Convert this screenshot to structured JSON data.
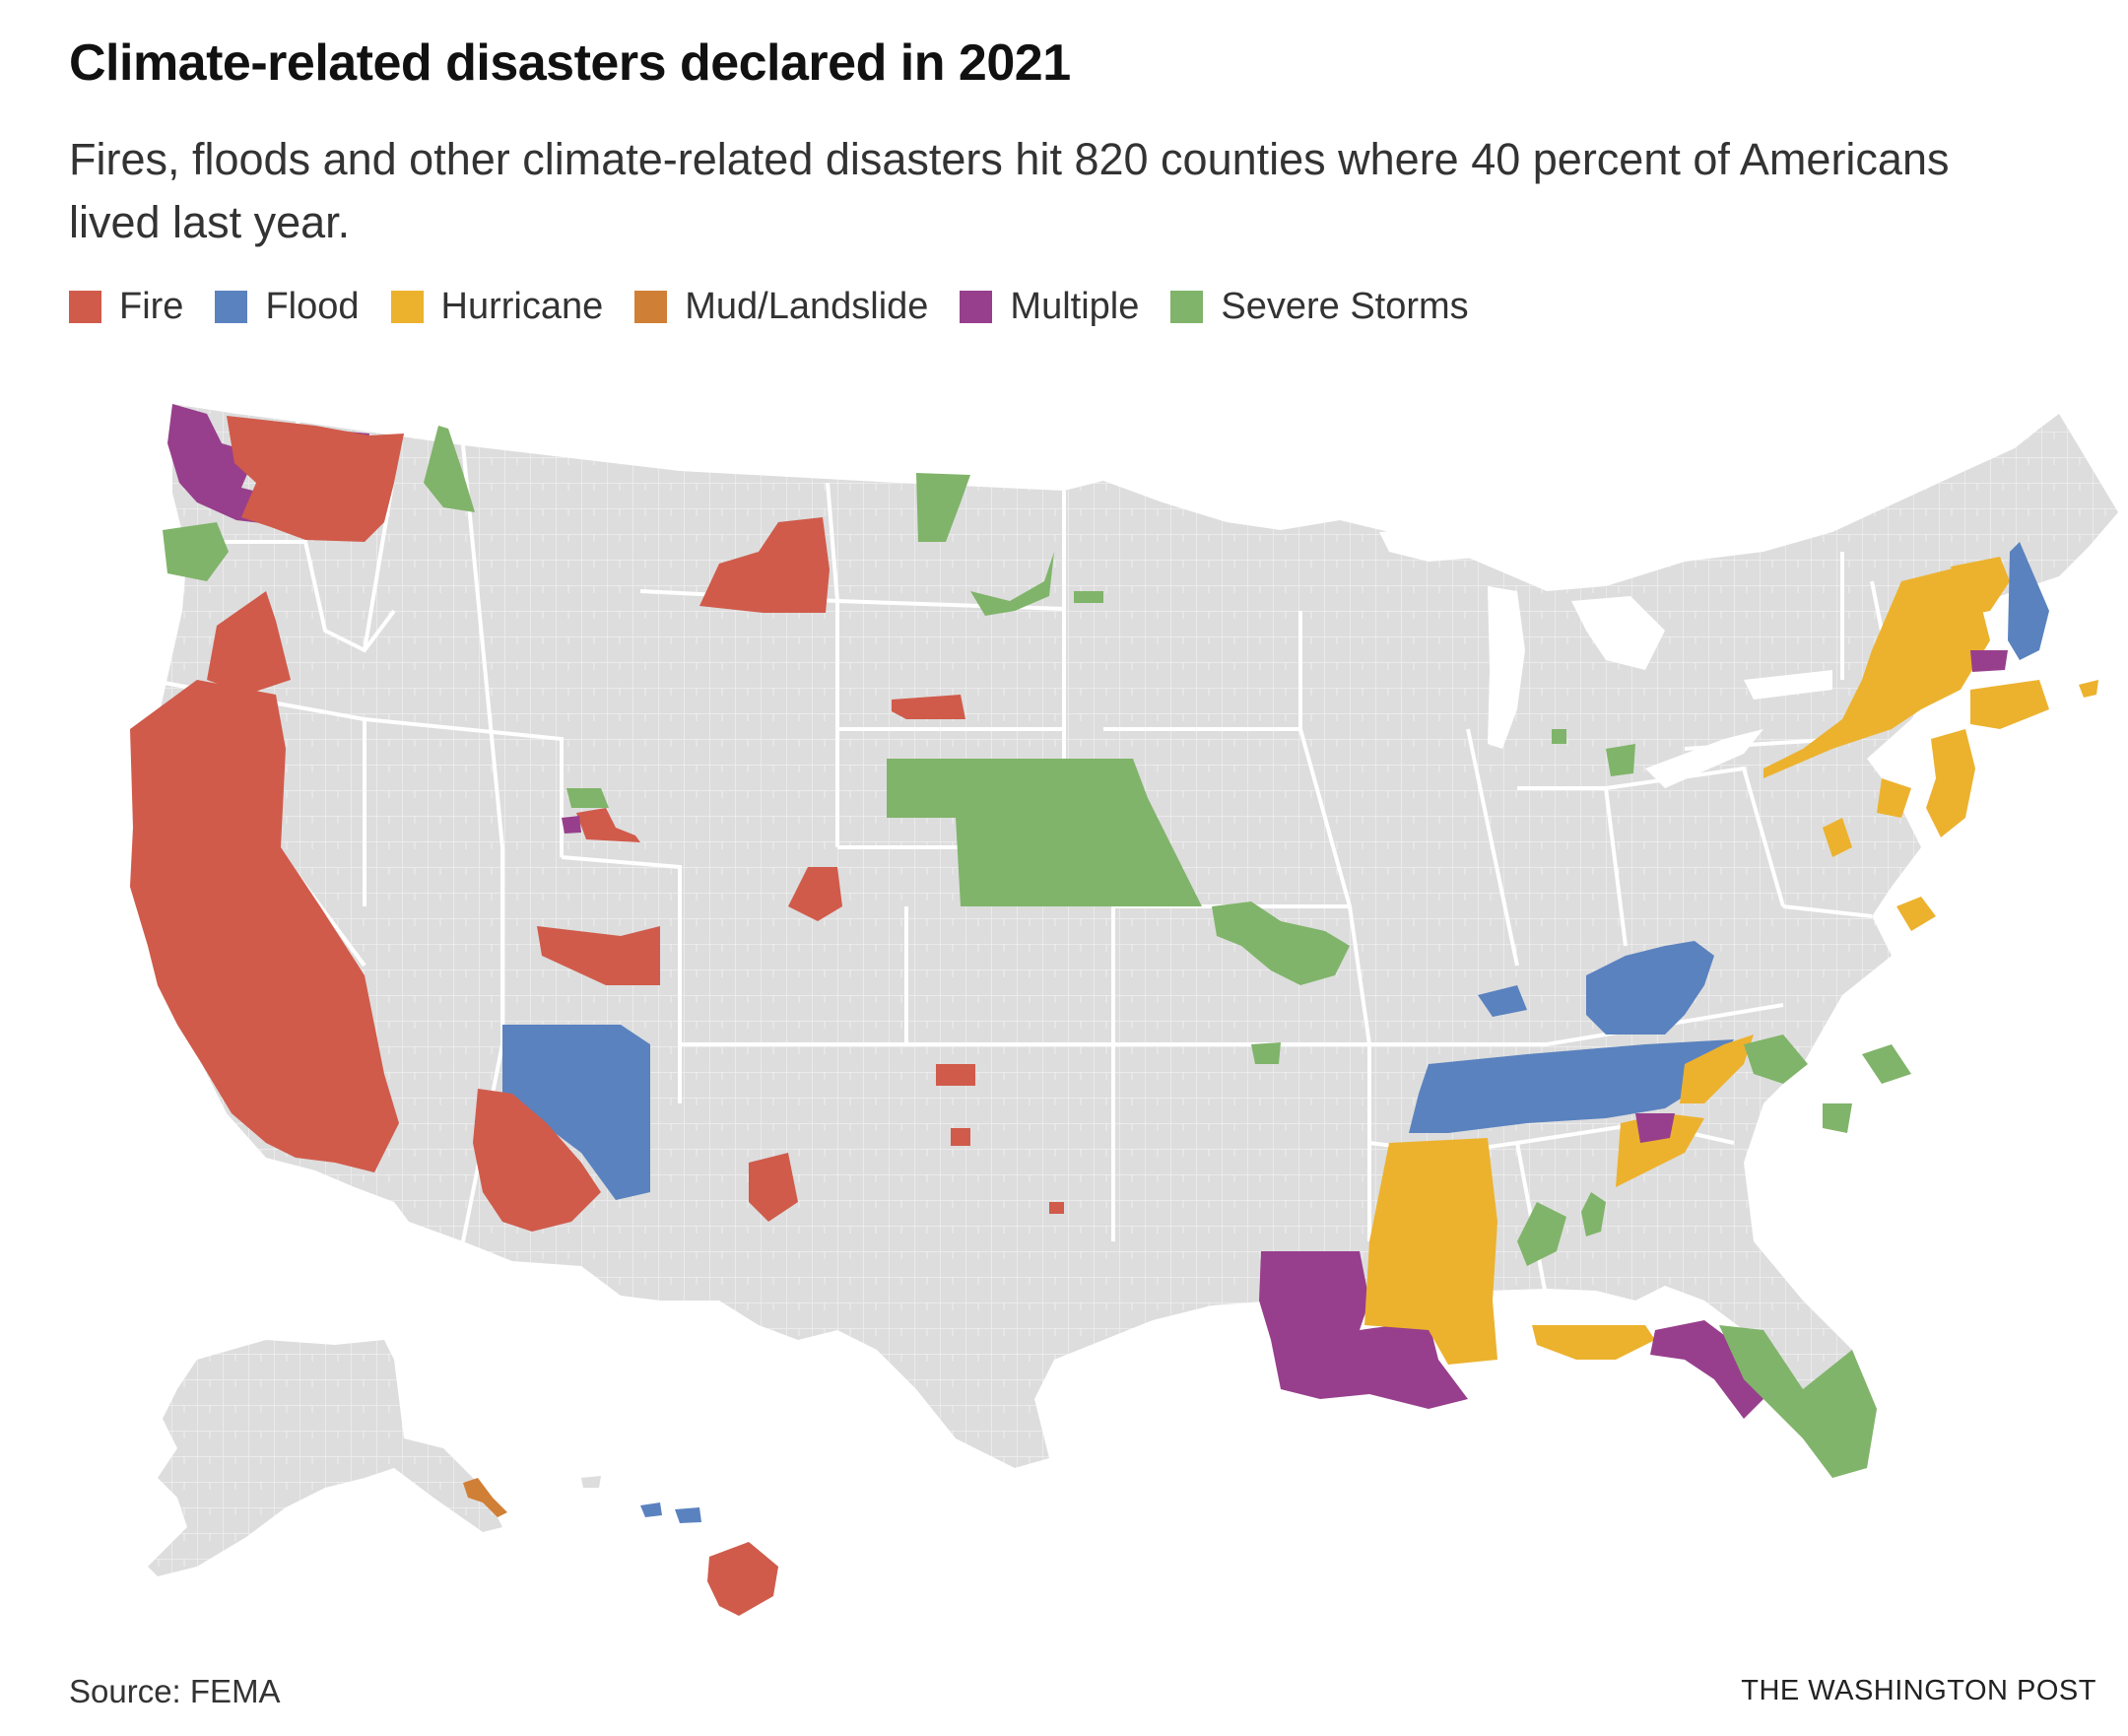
{
  "title": "Climate-related disasters declared in 2021",
  "subtitle": "Fires, floods and other climate-related disasters hit 820 counties where 40 percent of Americans lived last year.",
  "legend": [
    {
      "label": "Fire",
      "color": "#d05b4b"
    },
    {
      "label": "Flood",
      "color": "#5a82bf"
    },
    {
      "label": "Hurricane",
      "color": "#ecb22e"
    },
    {
      "label": "Mud/Landslide",
      "color": "#d07f36"
    },
    {
      "label": "Multiple",
      "color": "#973f8c"
    },
    {
      "label": "Severe Storms",
      "color": "#80b46a"
    }
  ],
  "colors": {
    "land": "#dddddd",
    "state_border": "#ffffff"
  },
  "regions": [
    {
      "name": "washington-multiple",
      "type": "Multiple"
    },
    {
      "name": "washington-fire",
      "type": "Fire"
    },
    {
      "name": "idaho-panhandle-storms",
      "type": "Severe Storms"
    },
    {
      "name": "oregon-storms",
      "type": "Severe Storms"
    },
    {
      "name": "oregon-fire",
      "type": "Fire"
    },
    {
      "name": "california-fire",
      "type": "Fire"
    },
    {
      "name": "montana-fire",
      "type": "Fire"
    },
    {
      "name": "north-dakota-storms",
      "type": "Severe Storms"
    },
    {
      "name": "south-dakota-fire",
      "type": "Fire"
    },
    {
      "name": "nebraska-storms",
      "type": "Severe Storms"
    },
    {
      "name": "utah-fire",
      "type": "Fire"
    },
    {
      "name": "colorado-fire",
      "type": "Fire"
    },
    {
      "name": "arizona-fire",
      "type": "Fire"
    },
    {
      "name": "arizona-flood",
      "type": "Flood"
    },
    {
      "name": "new-mexico-fire",
      "type": "Fire"
    },
    {
      "name": "oklahoma-fire",
      "type": "Fire"
    },
    {
      "name": "missouri-storms",
      "type": "Severe Storms"
    },
    {
      "name": "kentucky-flood",
      "type": "Flood"
    },
    {
      "name": "tennessee-flood",
      "type": "Flood"
    },
    {
      "name": "louisiana-multiple",
      "type": "Multiple"
    },
    {
      "name": "mississippi-hurricane",
      "type": "Hurricane"
    },
    {
      "name": "alabama-storms",
      "type": "Severe Storms"
    },
    {
      "name": "florida-panhandle-hurricane",
      "type": "Hurricane"
    },
    {
      "name": "florida-multiple",
      "type": "Multiple"
    },
    {
      "name": "florida-storms",
      "type": "Severe Storms"
    },
    {
      "name": "georgia-hurricane",
      "type": "Hurricane"
    },
    {
      "name": "appalachia-hurricane",
      "type": "Hurricane"
    },
    {
      "name": "virginia-storms",
      "type": "Severe Storms"
    },
    {
      "name": "carolina-storms",
      "type": "Severe Storms"
    },
    {
      "name": "new-york-hurricane",
      "type": "Hurricane"
    },
    {
      "name": "vermont-hurricane",
      "type": "Hurricane"
    },
    {
      "name": "new-hampshire-flood",
      "type": "Flood"
    },
    {
      "name": "new-jersey-hurricane",
      "type": "Hurricane"
    },
    {
      "name": "pennsylvania-hurricane",
      "type": "Hurricane"
    },
    {
      "name": "michigan-storms",
      "type": "Severe Storms"
    },
    {
      "name": "alaska-landslide",
      "type": "Mud/Landslide"
    },
    {
      "name": "hawaii-fire",
      "type": "Fire"
    },
    {
      "name": "hawaii-flood",
      "type": "Flood"
    }
  ],
  "source": "Source: FEMA",
  "credit": "THE WASHINGTON POST"
}
